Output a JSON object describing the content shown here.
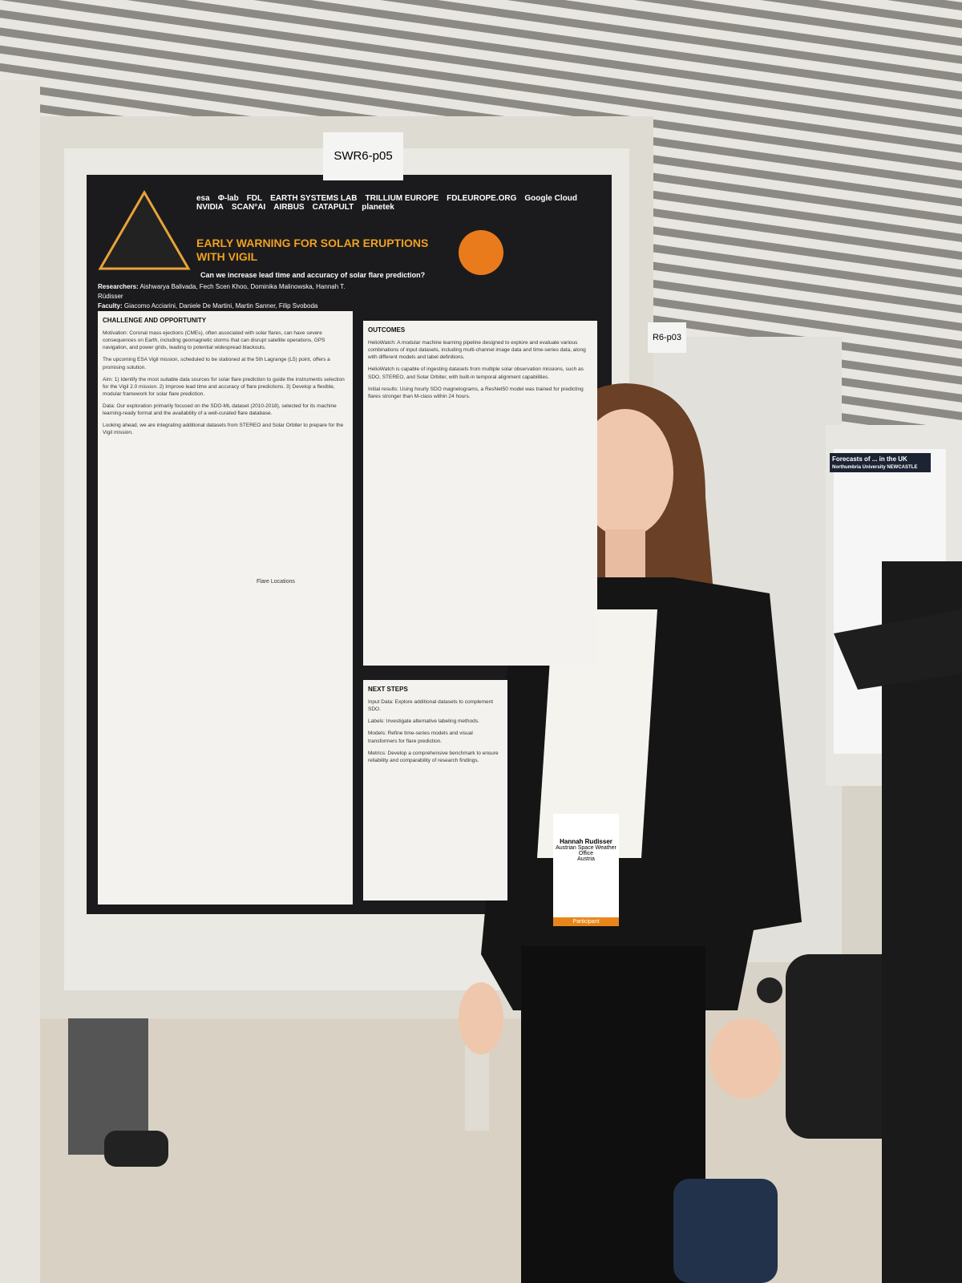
{
  "sign": "SWR6-p05",
  "poster": {
    "logos": [
      "esa",
      "Φ-lab",
      "FDL",
      "EARTH SYSTEMS LAB",
      "TRILLIUM EUROPE",
      "FDLEUROPE.ORG",
      "Google Cloud",
      "NVIDIA",
      "SCAN°AI",
      "AIRBUS",
      "CATAPULT",
      "planetek"
    ],
    "title": "EARLY WARNING FOR SOLAR ERUPTIONS WITH VIGIL",
    "question": "Can we increase lead time and accuracy of solar flare prediction?",
    "researchers_label": "Researchers:",
    "researchers": "Aishwarya Balivada, Fech Scen Khoo, Dominika Malinowska, Hannah T. Rüdisser",
    "faculty_label": "Faculty:",
    "faculty": "Giacomo Acciarini, Daniele De Martini, Martin Sanner, Filip Svoboda",
    "sections": [
      {
        "heading": "CHALLENGE AND OPPORTUNITY",
        "paragraphs": [
          "Motivation: Coronal mass ejections (CMEs), often associated with solar flares, can have severe consequences on Earth, including geomagnetic storms that can disrupt satellite operations, GPS navigation, and power grids, leading to potential widespread blackouts.",
          "The upcoming ESA Vigil mission, scheduled to be stationed at the 5th Lagrange (L5) point, offers a promising solution.",
          "Aim: 1) Identify the most suitable data sources for solar flare prediction to guide the instruments selection for the Vigil 2.0 mission. 2) Improve lead time and accuracy of flare predictions. 3) Develop a flexible, modular framework for solar flare prediction.",
          "Data: Our exploration primarily focused on the SDO-ML dataset (2010-2018), selected for its machine learning-ready format and the availability of a well-curated flare database.",
          "Looking ahead, we are integrating additional datasets from STEREO and Solar Orbiter to prepare for the Vigil mission."
        ]
      },
      {
        "heading": "OUTCOMES",
        "paragraphs": [
          "HelioWatch: A modular machine learning pipeline designed to explore and evaluate various combinations of input datasets, including multi-channel image data and time-series data, along with different models and label definitions.",
          "HelioWatch is capable of ingesting datasets from multiple solar observation missions, such as SDO, STEREO, and Solar Orbiter, with built-in temporal alignment capabilities.",
          "Initial results: Using hourly SDO magnetograms, a ResNet50 model was trained for predicting flares stronger than M-class within 24 hours."
        ]
      },
      {
        "heading": "NEXT STEPS",
        "paragraphs": [
          "Input Data: Explore additional datasets to complement SDO.",
          "Labels: Investigate alternative labeling methods.",
          "Models: Refine time-series models and visual transformers for flare prediction.",
          "Metrics: Develop a comprehensive benchmark to ensure reliability and comparability of research findings."
        ]
      }
    ],
    "figure_label": "Flare Locations"
  },
  "neighbor_sign": "R6-p03",
  "neighbor_poster": {
    "title": "Forecasts of ... in the UK",
    "logo": "Northumbria University NEWCASTLE"
  },
  "badge": {
    "name": "Hannah Rudisser",
    "org": "Austrian Space Weather Office",
    "country": "Austria",
    "role": "Participant"
  }
}
